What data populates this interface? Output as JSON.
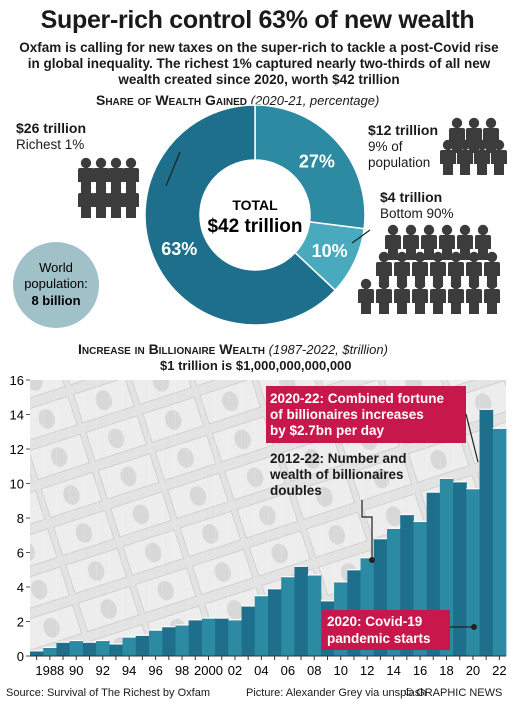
{
  "title": "Super-rich control 63% of new wealth",
  "subtitle": "Oxfam is calling for new taxes on the super-rich to tackle a post-Covid rise in global inequality. The richest 1% captured nearly two-thirds of all new wealth created since 2020, worth $42 trillion",
  "colors": {
    "dark": "#1e6f8c",
    "mid": "#2c8ba3",
    "light": "#49a9bd",
    "highlight": "#c8174a",
    "world_circle": "#9fc1c7",
    "people": "#3c3c3c"
  },
  "chart_data": [
    {
      "type": "pie",
      "title": "Share of Wealth Gained",
      "subtitle": "(2020-21, percentage)",
      "center_label": "TOTAL",
      "center_value": "$42 trillion",
      "slices": [
        {
          "value": 63,
          "label": "63%",
          "amount": "$26 trillion",
          "group": "Richest 1%",
          "color": "#1e6f8c"
        },
        {
          "value": 27,
          "label": "27%",
          "amount": "$12 trillion",
          "group": "9% of population",
          "color": "#2c8ba3"
        },
        {
          "value": 10,
          "label": "10%",
          "amount": "$4 trillion",
          "group": "Bottom 90%",
          "color": "#49a9bd"
        }
      ],
      "world_label": "World population:",
      "world_value": "8 billion"
    },
    {
      "type": "area",
      "title": "Increase in Billionaire Wealth",
      "subtitle": "(1987-2022, $trillion)",
      "note": "$1 trillion is $1,000,000,000,000",
      "x": [
        1987,
        1988,
        1989,
        1990,
        1991,
        1992,
        1993,
        1994,
        1995,
        1996,
        1997,
        1998,
        1999,
        2000,
        2001,
        2002,
        2003,
        2004,
        2005,
        2006,
        2007,
        2008,
        2009,
        2010,
        2011,
        2012,
        2013,
        2014,
        2015,
        2016,
        2017,
        2018,
        2019,
        2020,
        2021,
        2022
      ],
      "values": [
        0.3,
        0.5,
        0.8,
        0.9,
        0.8,
        0.9,
        0.7,
        1.1,
        1.2,
        1.5,
        1.7,
        1.8,
        2.1,
        2.2,
        2.2,
        2.1,
        2.9,
        3.5,
        3.9,
        4.6,
        5.2,
        4.7,
        3.2,
        4.3,
        5.0,
        5.7,
        6.8,
        7.4,
        8.2,
        7.8,
        9.5,
        10.3,
        10.1,
        9.7,
        14.3,
        13.2
      ],
      "ylim": [
        0,
        16
      ],
      "yticks": [
        "0",
        "2",
        "4",
        "6",
        "8",
        "10",
        "12",
        "14",
        "16"
      ],
      "xtick_labels": [
        "1988",
        "90",
        "92",
        "94",
        "96",
        "98",
        "2000",
        "02",
        "04",
        "06",
        "08",
        "10",
        "12",
        "14",
        "16",
        "18",
        "20",
        "22"
      ],
      "grid": false,
      "annotations": [
        {
          "text_lines": [
            "2020-22: Combined fortune",
            "of billionaires increases",
            "by $2.7bn per day"
          ],
          "style": "highlight"
        },
        {
          "text_lines": [
            "2012-22: Number and",
            "wealth of billionaires",
            "doubles"
          ],
          "style": "plain"
        },
        {
          "text_lines": [
            "2020: Covid-19",
            "pandemic starts"
          ],
          "style": "highlight"
        }
      ]
    }
  ],
  "source": "Source: Survival of The Richest by Oxfam",
  "picture_credit": "Picture: Alexander Grey via unsplash",
  "copyright": "© GRAPHIC NEWS"
}
